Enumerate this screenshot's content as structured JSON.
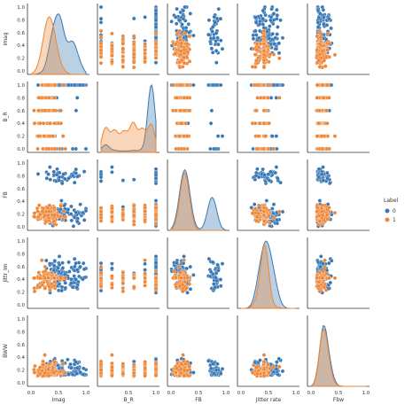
{
  "chart_data": {
    "type": "scatter",
    "title": "",
    "variables": [
      "Imag",
      "B_R",
      "FB",
      "Jittr_Im",
      "BWW"
    ],
    "x_axis_labels": [
      "Imag",
      "B_R",
      "FB",
      "Jitter rate",
      "Fbw"
    ],
    "x_tick_labels": [
      [
        "0.0",
        "0.5",
        "1.0"
      ],
      [
        "0.5",
        "1.0"
      ],
      [
        "0.0",
        "0.5",
        "1.0"
      ],
      [
        "0.0",
        "0.5",
        "1.0"
      ],
      [
        "0.0",
        "0.5",
        "1.0"
      ]
    ],
    "y_tick_labels": [
      [
        "1.0",
        "0.8",
        "0.6",
        "0.4",
        "0.2",
        "0.0"
      ],
      [
        "1.0",
        "0.8",
        "0.6",
        "0.4",
        "0.2",
        "0.0"
      ],
      [
        "1.0",
        "0.8",
        "0.6",
        "0.4",
        "0.2",
        "0.0"
      ],
      [
        "1.0",
        "0.8",
        "0.6",
        "0.4",
        "0.2",
        "0.0"
      ],
      [
        "1.0",
        "0.8",
        "0.6",
        "0.4",
        "0.2",
        "0.0"
      ]
    ],
    "legend": {
      "title": "Label",
      "placement": "right",
      "entries": [
        {
          "name": "0",
          "color": "#3a78b5"
        },
        {
          "name": "1",
          "color": "#ee8636"
        }
      ]
    },
    "diagonal": "kde",
    "off_diagonal": "scatter",
    "series": [
      {
        "name": "0",
        "color": "#3a78b5",
        "count": 130
      },
      {
        "name": "1",
        "color": "#ee8636",
        "count": 130
      }
    ]
  }
}
